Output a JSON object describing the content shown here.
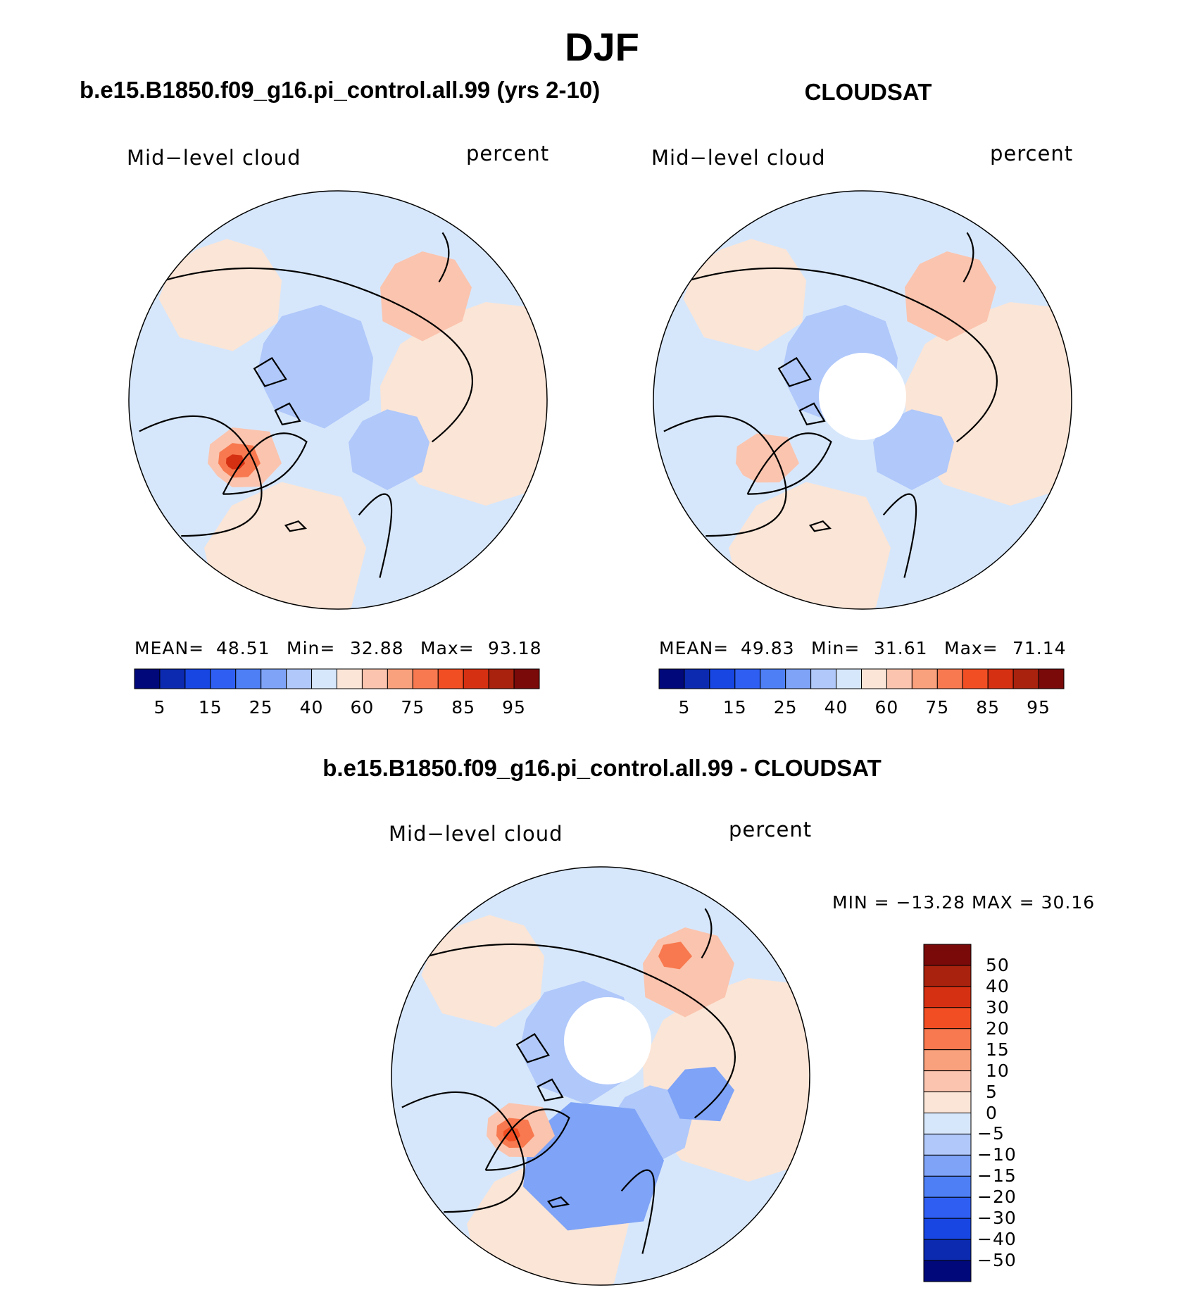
{
  "figure": {
    "title": "DJF",
    "panels": [
      {
        "title": "b.e15.B1850.f09_g16.pi_control.all.99 (yrs 2-10)",
        "variable": "Mid−level cloud",
        "units": "percent",
        "mean_label": "MEAN=",
        "mean": "48.51",
        "min_label": "Min=",
        "min": "32.88",
        "max_label": "Max=",
        "max": "93.18"
      },
      {
        "title": "CLOUDSAT",
        "variable": "Mid−level cloud",
        "units": "percent",
        "mean_label": "MEAN=",
        "mean": "49.83",
        "min_label": "Min=",
        "min": "31.61",
        "max_label": "Max=",
        "max": "71.14"
      }
    ],
    "difference": {
      "title": "b.e15.B1850.f09_g16.pi_control.all.99 - CLOUDSAT",
      "variable": "Mid−level cloud",
      "units": "percent",
      "minmax_text": "MIN = −13.28 MAX =   30.16"
    }
  },
  "chart_data": [
    {
      "type": "heatmap",
      "title": "b.e15.B1850.f09_g16.pi_control.all.99 (yrs 2-10)",
      "variable": "Mid-level cloud",
      "units": "percent",
      "projection": "north polar stereographic",
      "mean": 48.51,
      "min": 32.88,
      "max": 93.18,
      "colorbar_levels": [
        5,
        10,
        15,
        20,
        25,
        30,
        40,
        50,
        60,
        70,
        75,
        80,
        85,
        90,
        95
      ],
      "colorbar_tick_labels": [
        "5",
        "15",
        "25",
        "40",
        "60",
        "75",
        "85",
        "95"
      ],
      "colors": [
        "#00087a",
        "#0c2ab0",
        "#1746e3",
        "#2f5ff2",
        "#4e7ff5",
        "#7ea3f7",
        "#b0c8fa",
        "#d7e7fb",
        "#fbe5d6",
        "#fbc4ae",
        "#f9a07c",
        "#f8794f",
        "#f24e23",
        "#d63012",
        "#a8220e",
        "#7a0a0a"
      ]
    },
    {
      "type": "heatmap",
      "title": "CLOUDSAT",
      "variable": "Mid-level cloud",
      "units": "percent",
      "projection": "north polar stereographic",
      "mean": 49.83,
      "min": 31.61,
      "max": 71.14,
      "colorbar_levels": [
        5,
        10,
        15,
        20,
        25,
        30,
        40,
        50,
        60,
        70,
        75,
        80,
        85,
        90,
        95
      ],
      "colorbar_tick_labels": [
        "5",
        "15",
        "25",
        "40",
        "60",
        "75",
        "85",
        "95"
      ],
      "colors": [
        "#00087a",
        "#0c2ab0",
        "#1746e3",
        "#2f5ff2",
        "#4e7ff5",
        "#7ea3f7",
        "#b0c8fa",
        "#d7e7fb",
        "#fbe5d6",
        "#fbc4ae",
        "#f9a07c",
        "#f8794f",
        "#f24e23",
        "#d63012",
        "#a8220e",
        "#7a0a0a"
      ]
    },
    {
      "type": "heatmap",
      "title": "b.e15.B1850.f09_g16.pi_control.all.99 - CLOUDSAT",
      "variable": "Mid-level cloud",
      "units": "percent",
      "projection": "north polar stereographic",
      "min": -13.28,
      "max": 30.16,
      "colorbar_levels": [
        -50,
        -40,
        -30,
        -20,
        -15,
        -10,
        -5,
        0,
        5,
        10,
        15,
        20,
        30,
        40,
        50
      ],
      "colorbar_tick_labels": [
        "50",
        "40",
        "30",
        "20",
        "15",
        "10",
        "5",
        "0",
        "−5",
        "−10",
        "−15",
        "−20",
        "−30",
        "−40",
        "−50"
      ],
      "colors": [
        "#7a0a0a",
        "#a8220e",
        "#d63012",
        "#f24e23",
        "#f8794f",
        "#f9a07c",
        "#fbc4ae",
        "#fbe5d6",
        "#d7e7fb",
        "#b0c8fa",
        "#7ea3f7",
        "#4e7ff5",
        "#2f5ff2",
        "#1746e3",
        "#0c2ab0",
        "#00087a"
      ]
    }
  ]
}
